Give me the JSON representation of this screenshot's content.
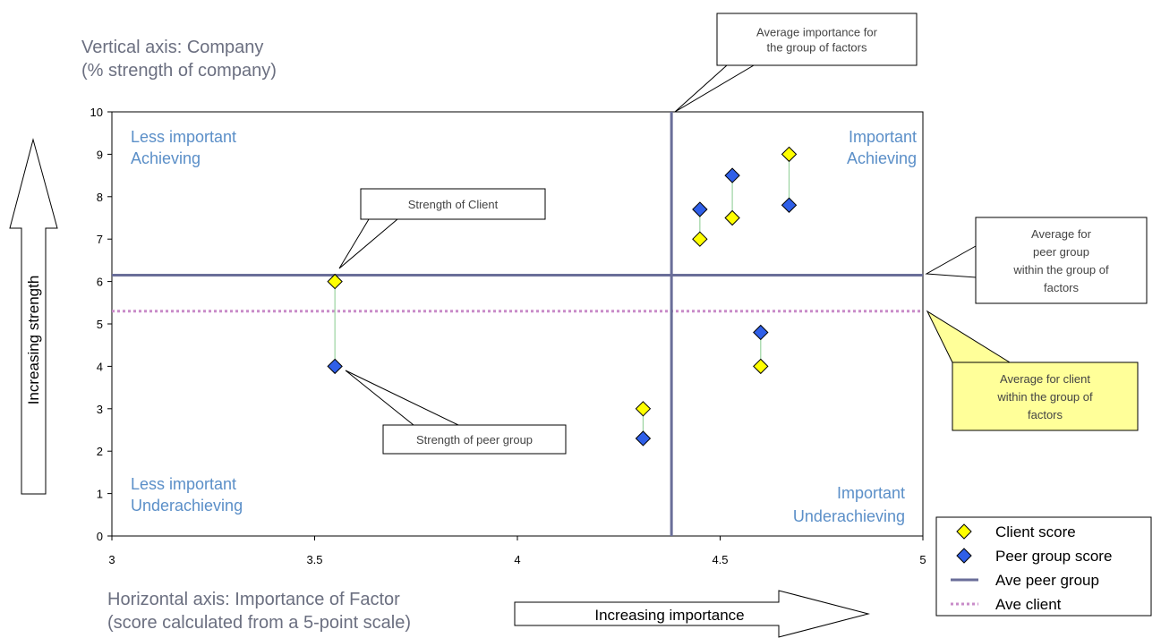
{
  "chart_data": {
    "type": "scatter",
    "vertical_axis_title": "Vertical axis: Company",
    "vertical_axis_subtitle": "(% strength of company)",
    "horizontal_axis_title": "Horizontal axis: Importance of Factor",
    "horizontal_axis_subtitle": "(score calculated from  a 5-point scale)",
    "xlim": [
      3,
      5
    ],
    "ylim": [
      0,
      10
    ],
    "x_ticks": [
      "3",
      "3.5",
      "4",
      "4.5",
      "5"
    ],
    "x_tick_values": [
      3,
      3.5,
      4,
      4.5,
      5
    ],
    "y_ticks": [
      "0",
      "1",
      "2",
      "3",
      "4",
      "5",
      "6",
      "7",
      "8",
      "9",
      "10"
    ],
    "y_tick_values": [
      0,
      1,
      2,
      3,
      4,
      5,
      6,
      7,
      8,
      9,
      10
    ],
    "grid": false,
    "legend_position": "bottom-right",
    "series": [
      {
        "name": "Client score",
        "marker": "diamond",
        "color": "#ffff00",
        "points": [
          {
            "x": 3.55,
            "y": 6.0
          },
          {
            "x": 4.31,
            "y": 3.0
          },
          {
            "x": 4.45,
            "y": 7.0
          },
          {
            "x": 4.53,
            "y": 7.5
          },
          {
            "x": 4.6,
            "y": 4.0
          },
          {
            "x": 4.67,
            "y": 9.0
          }
        ]
      },
      {
        "name": "Peer group score",
        "marker": "diamond",
        "color": "#2f5fe8",
        "points": [
          {
            "x": 3.55,
            "y": 4.0
          },
          {
            "x": 4.31,
            "y": 2.3
          },
          {
            "x": 4.45,
            "y": 7.7
          },
          {
            "x": 4.53,
            "y": 8.5
          },
          {
            "x": 4.6,
            "y": 4.8
          },
          {
            "x": 4.67,
            "y": 7.8
          }
        ]
      }
    ],
    "connector_color": "#9ad3a0",
    "reference_lines": {
      "ave_peer_group": {
        "name": "Ave peer group",
        "value": 6.15,
        "color": "#6a6e99"
      },
      "ave_client": {
        "name": "Ave client",
        "value": 5.3,
        "color": "#c98cc9"
      },
      "average_importance": {
        "value": 4.38,
        "color": "#6a6e99"
      }
    },
    "quadrant_labels": {
      "top_left": [
        "Less important",
        "Achieving"
      ],
      "top_right": [
        "Important",
        "Achieving"
      ],
      "bottom_left": [
        "Less important",
        "Underachieving"
      ],
      "bottom_right": [
        "Important",
        "Underachieving"
      ]
    },
    "quadrant_label_color": "#5b8fc8",
    "callouts": {
      "average_importance": [
        "Average importance for",
        "the group of factors"
      ],
      "strength_of_client": [
        "Strength of Client"
      ],
      "strength_of_peer_group": [
        "Strength of peer group"
      ],
      "average_peer_group": [
        "Average for",
        "peer group",
        "within the group of",
        "factors"
      ],
      "average_client": [
        "Average for client",
        "within the group of",
        "factors"
      ]
    },
    "callout_highlight_color": "#ffff99",
    "arrows": {
      "vertical": "Increasing strength",
      "horizontal": "Increasing importance"
    },
    "legend": [
      {
        "label": "Client score",
        "kind": "diamond",
        "color": "#ffff00"
      },
      {
        "label": "Peer group score",
        "kind": "diamond",
        "color": "#2f5fe8"
      },
      {
        "label": "Ave peer group",
        "kind": "line",
        "color": "#6a6e99"
      },
      {
        "label": "Ave client",
        "kind": "dotted",
        "color": "#c98cc9"
      }
    ]
  }
}
